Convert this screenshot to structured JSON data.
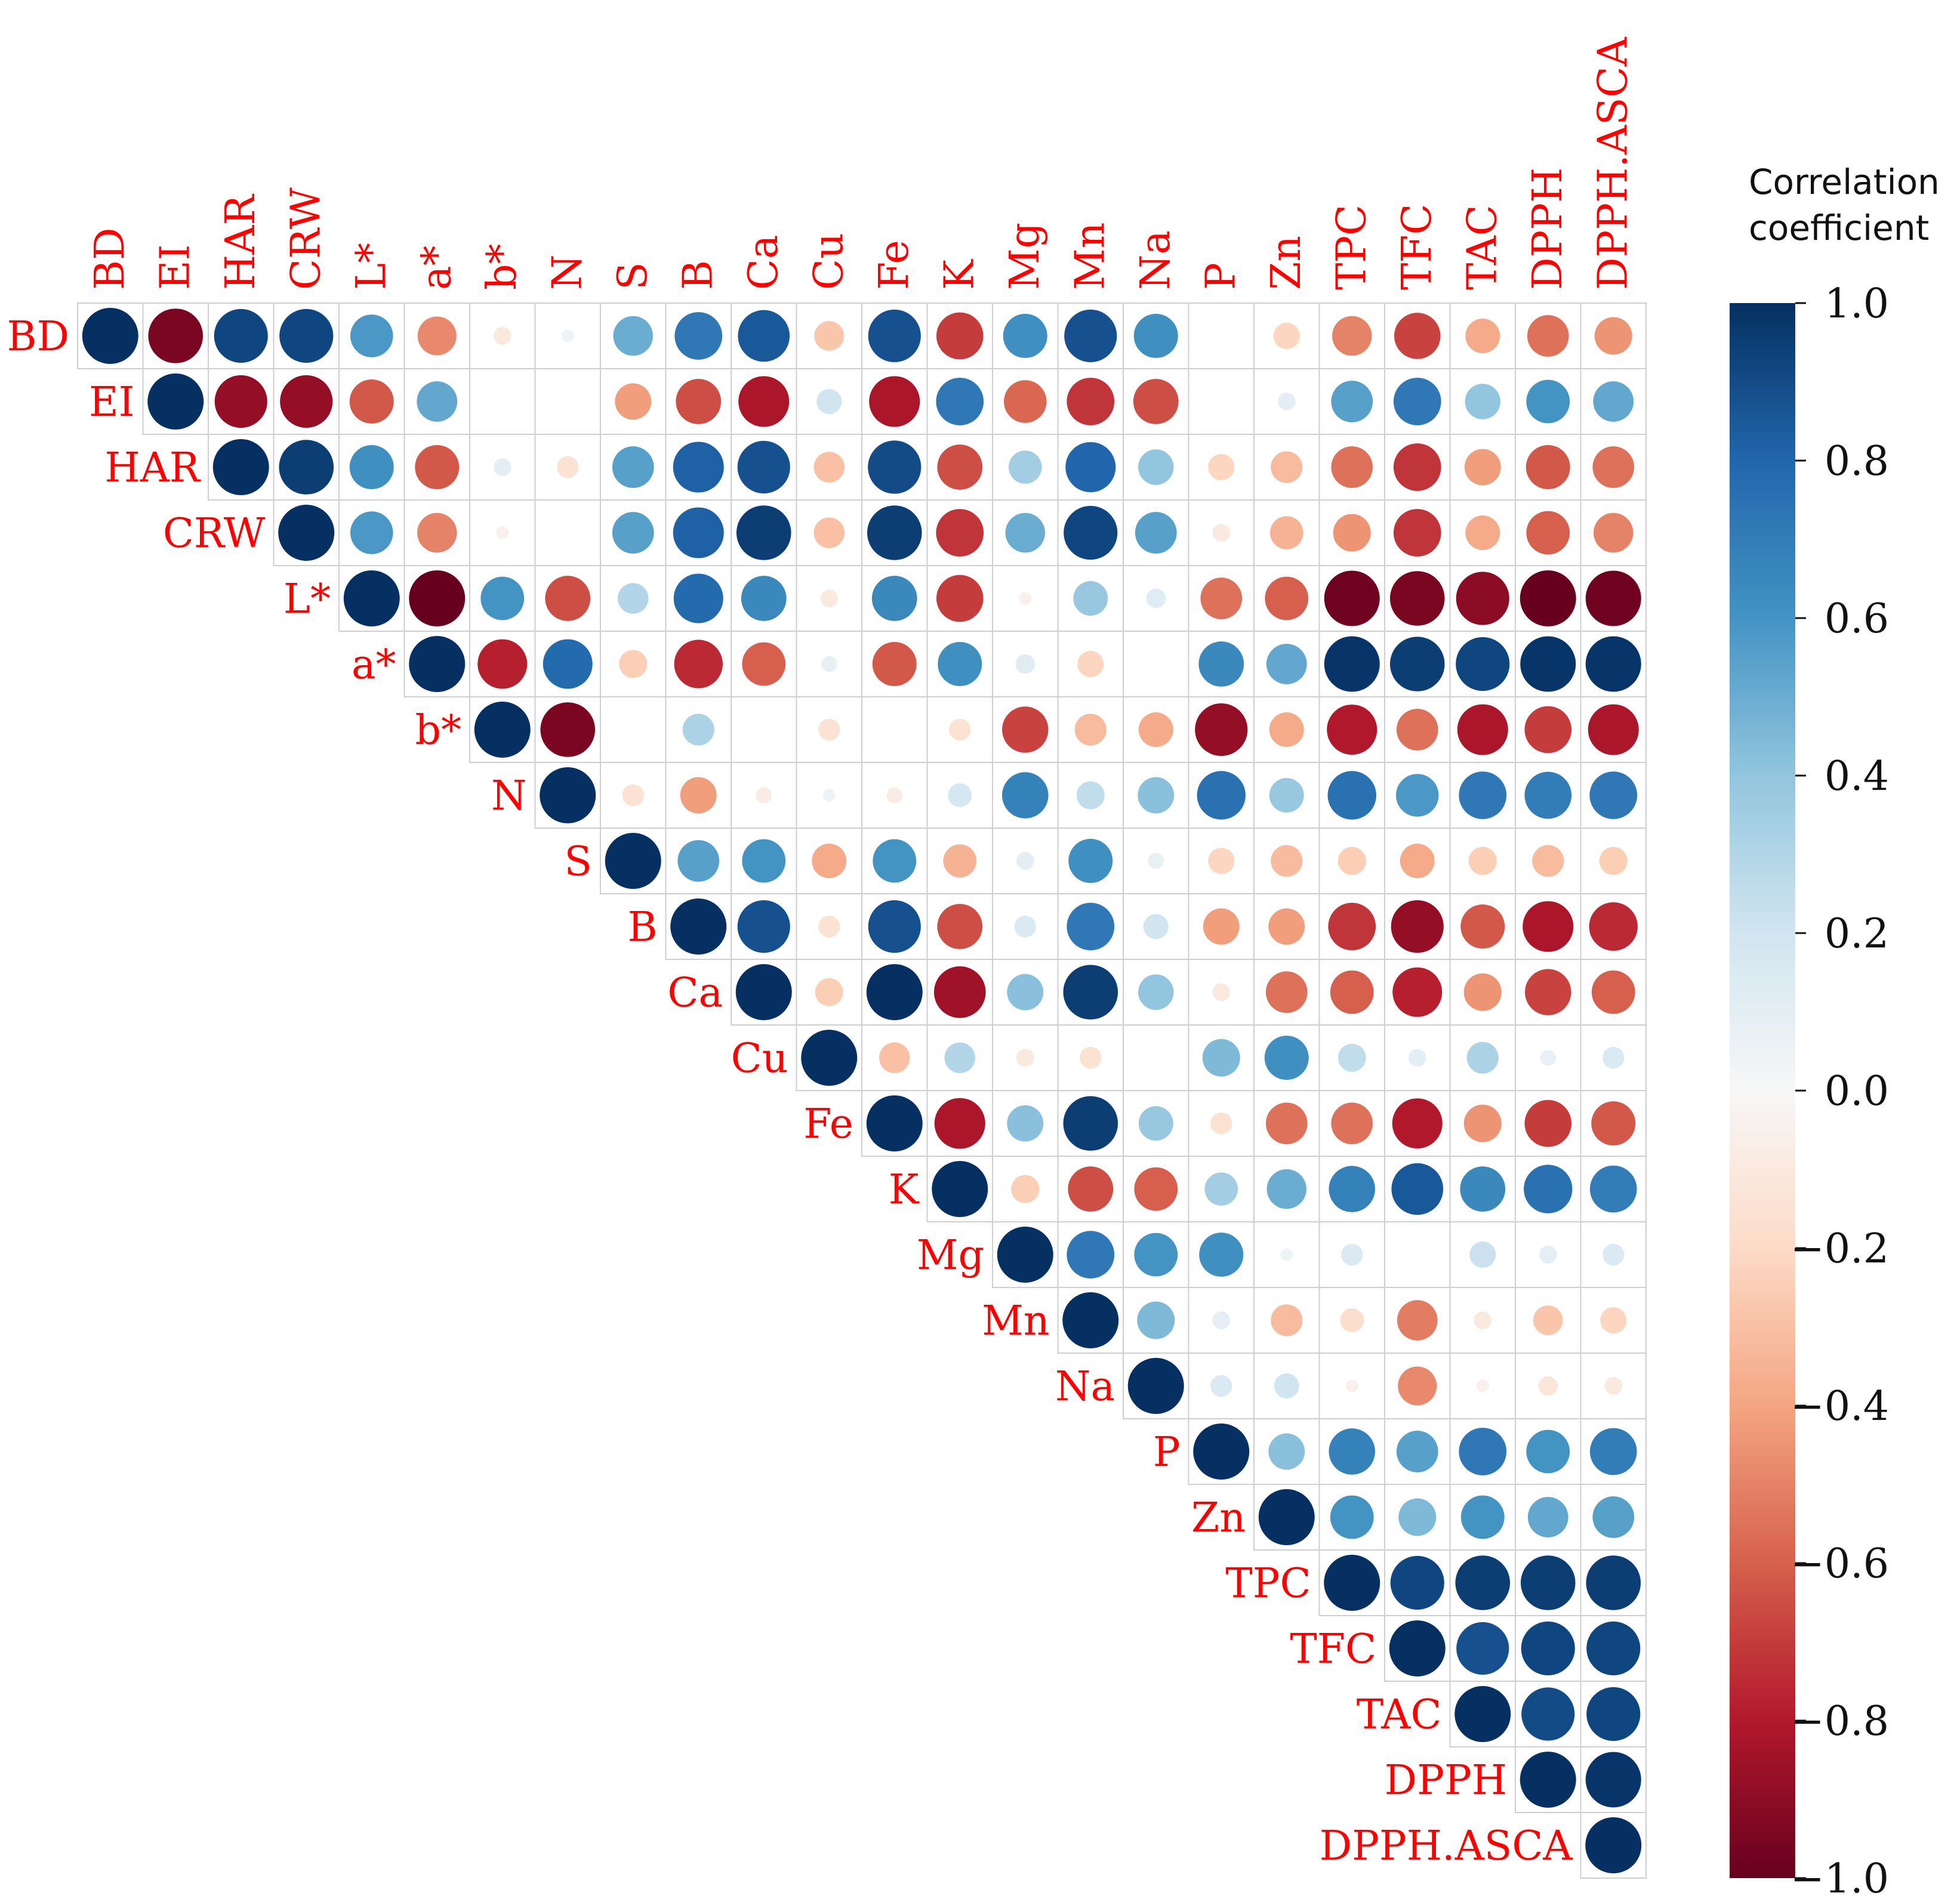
{
  "chart_data": {
    "type": "heatmap",
    "subtype": "correlation-circle-upper-triangle",
    "variables": [
      "BD",
      "EI",
      "HAR",
      "CRW",
      "L*",
      "a*",
      "b*",
      "N",
      "S",
      "B",
      "Ca",
      "Cu",
      "Fe",
      "K",
      "Mg",
      "Mn",
      "Na",
      "P",
      "Zn",
      "TPC",
      "TFC",
      "TAC",
      "DPPH",
      "DPPH.ASCA"
    ],
    "matrix_upper_rows": [
      [
        1.0,
        -0.95,
        0.92,
        0.92,
        0.58,
        -0.48,
        -0.1,
        0.05,
        0.5,
        0.72,
        0.85,
        -0.28,
        0.88,
        -0.7,
        0.62,
        0.88,
        0.62,
        0.0,
        -0.22,
        -0.5,
        -0.68,
        -0.38,
        -0.55,
        -0.45
      ],
      [
        1.0,
        -0.88,
        -0.88,
        -0.62,
        0.52,
        0.0,
        0.0,
        -0.42,
        -0.65,
        -0.82,
        0.2,
        -0.82,
        0.72,
        -0.58,
        -0.72,
        -0.65,
        0.0,
        0.1,
        0.55,
        0.72,
        0.4,
        0.6,
        0.52
      ],
      [
        1.0,
        0.95,
        0.62,
        -0.62,
        0.1,
        -0.15,
        0.55,
        0.82,
        0.88,
        -0.3,
        0.9,
        -0.65,
        0.35,
        0.8,
        0.4,
        -0.22,
        -0.32,
        -0.55,
        -0.72,
        -0.42,
        -0.62,
        -0.55
      ],
      [
        1.0,
        0.58,
        -0.5,
        -0.05,
        0.0,
        0.55,
        0.82,
        0.95,
        -0.3,
        0.95,
        -0.72,
        0.5,
        0.92,
        0.55,
        -0.1,
        -0.35,
        -0.45,
        -0.72,
        -0.38,
        -0.6,
        -0.5
      ],
      [
        1.0,
        -1.0,
        0.6,
        -0.65,
        0.3,
        0.78,
        0.65,
        -0.1,
        0.65,
        -0.7,
        -0.05,
        0.38,
        0.12,
        -0.55,
        -0.6,
        -0.98,
        -0.95,
        -0.9,
        -1.0,
        -0.98
      ],
      [
        1.0,
        -0.78,
        0.78,
        -0.25,
        -0.75,
        -0.6,
        0.08,
        -0.62,
        0.62,
        0.12,
        -0.22,
        0.0,
        0.65,
        0.52,
        0.98,
        0.95,
        0.92,
        0.98,
        0.98
      ],
      [
        1.0,
        -0.95,
        0.0,
        0.32,
        0.0,
        -0.15,
        0.0,
        -0.15,
        -0.68,
        -0.32,
        -0.38,
        -0.88,
        -0.38,
        -0.8,
        -0.55,
        -0.82,
        -0.7,
        -0.82
      ],
      [
        1.0,
        -0.15,
        -0.42,
        -0.08,
        0.05,
        -0.08,
        0.18,
        0.68,
        0.25,
        0.42,
        0.75,
        0.38,
        0.75,
        0.58,
        0.72,
        0.7,
        0.72
      ],
      [
        1.0,
        0.55,
        0.6,
        -0.38,
        0.6,
        -0.35,
        0.1,
        0.62,
        0.08,
        -0.22,
        -0.32,
        -0.25,
        -0.38,
        -0.25,
        -0.32,
        -0.25
      ],
      [
        1.0,
        0.88,
        -0.15,
        0.88,
        -0.65,
        0.15,
        0.72,
        0.2,
        -0.42,
        -0.42,
        -0.72,
        -0.88,
        -0.62,
        -0.82,
        -0.75
      ],
      [
        1.0,
        -0.25,
        1.0,
        -0.85,
        0.42,
        0.95,
        0.4,
        -0.1,
        -0.55,
        -0.6,
        -0.78,
        -0.45,
        -0.68,
        -0.6
      ],
      [
        1.0,
        -0.3,
        0.3,
        -0.1,
        -0.15,
        0.0,
        0.45,
        0.62,
        0.25,
        0.1,
        0.32,
        0.08,
        0.15
      ],
      [
        1.0,
        -0.82,
        0.42,
        0.95,
        0.38,
        -0.15,
        -0.55,
        -0.55,
        -0.8,
        -0.45,
        -0.7,
        -0.62
      ],
      [
        1.0,
        -0.25,
        -0.65,
        -0.6,
        0.35,
        0.5,
        0.68,
        0.85,
        0.65,
        0.75,
        0.7
      ],
      [
        1.0,
        0.72,
        0.6,
        0.62,
        0.05,
        0.15,
        0.0,
        0.22,
        0.1,
        0.15
      ],
      [
        1.0,
        0.45,
        0.1,
        -0.32,
        -0.18,
        -0.52,
        -0.1,
        -0.28,
        -0.22
      ],
      [
        1.0,
        0.15,
        0.2,
        -0.05,
        -0.48,
        -0.05,
        -0.12,
        -0.1
      ],
      [
        1.0,
        0.42,
        0.68,
        0.55,
        0.72,
        0.6,
        0.7
      ],
      [
        1.0,
        0.6,
        0.45,
        0.6,
        0.52,
        0.55
      ],
      [
        1.0,
        0.92,
        0.95,
        0.95,
        0.95
      ],
      [
        1.0,
        0.88,
        0.92,
        0.92
      ],
      [
        1.0,
        0.9,
        0.92
      ],
      [
        1.0,
        0.98
      ],
      [
        1.0
      ]
    ],
    "legend": {
      "title_line1": "Correlation",
      "title_line2": "coefficient",
      "range": [
        -1.0,
        1.0
      ],
      "ticks": [
        "1.0",
        "0.8",
        "0.6",
        "0.4",
        "0.2",
        "0.0",
        "−0.2",
        "−0.4",
        "−0.6",
        "−0.8",
        "−1.0"
      ],
      "placement": "right"
    },
    "colors": {
      "label": "#ff0000",
      "grid": "#cfcfcf",
      "neg_end": "#67001f",
      "pos_end": "#053061",
      "mid": "#f7f7f7"
    }
  }
}
